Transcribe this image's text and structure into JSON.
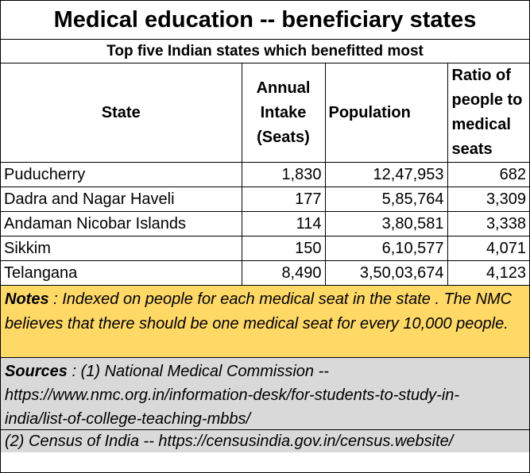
{
  "title": "Medical education --  beneficiary states",
  "subtitle": "Top five Indian states which benefitted most",
  "table": {
    "headers": {
      "state": "State",
      "intake": "Annual Intake (Seats)",
      "population": "Population",
      "ratio": "Ratio of people to medical seats"
    },
    "rows": [
      {
        "state": "Puducherry",
        "intake": "1,830",
        "population": "12,47,953",
        "ratio": "682"
      },
      {
        "state": "Dadra and Nagar Haveli",
        "intake": "177",
        "population": "5,85,764",
        "ratio": "3,309"
      },
      {
        "state": "Andaman Nicobar Islands",
        "intake": "114",
        "population": "3,80,581",
        "ratio": "3,338"
      },
      {
        "state": "Sikkim",
        "intake": "150",
        "population": "6,10,577",
        "ratio": "4,071"
      },
      {
        "state": "Telangana",
        "intake": "8,490",
        "population": "3,50,03,674",
        "ratio": "4,123"
      }
    ]
  },
  "notes": {
    "label": "Notes",
    "text": " : Indexed on people for each medical seat in the state . The NMC believes that there should be one medical seat for every 10,000 people."
  },
  "sources": {
    "label": "Sources",
    "line1": " :  (1) National Medical Commission --",
    "line2": "https://www.nmc.org.in/information-desk/for-students-to-study-in-",
    "line3": "india/list-of-college-teaching-mbbs/",
    "line4": "(2) Census of India -- https://censusindia.gov.in/census.website/"
  },
  "colors": {
    "notes_bg": "#ffd966",
    "sources_bg": "#d9d9d9"
  }
}
